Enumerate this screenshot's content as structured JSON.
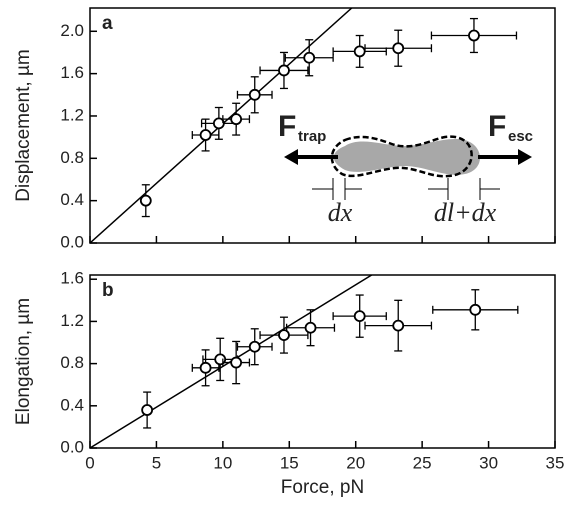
{
  "chart_data": [
    {
      "type": "scatter",
      "label": "a",
      "ylabel": "Displacement, µm",
      "xlim": [
        0,
        35
      ],
      "xticks": [
        0,
        5,
        10,
        15,
        20,
        25,
        30,
        35
      ],
      "ylim": [
        0,
        2.22
      ],
      "yticks": [
        {
          "value": 0,
          "label": "0.0"
        },
        {
          "value": 0.4,
          "label": "0.4"
        },
        {
          "value": 0.8,
          "label": "0.8"
        },
        {
          "value": 1.2,
          "label": "1.2"
        },
        {
          "value": 1.6,
          "label": "1.6"
        },
        {
          "value": 2.0,
          "label": "2.0"
        }
      ],
      "series": [
        {
          "type": "points",
          "color": "#000000",
          "x": [
            4.2,
            8.7,
            9.7,
            11,
            12.4,
            14.6,
            16.5,
            20.3,
            23.2,
            28.9
          ],
          "values": [
            0.4,
            1.02,
            1.13,
            1.17,
            1.4,
            1.63,
            1.75,
            1.81,
            1.84,
            1.96
          ],
          "xerr": [
            0,
            1.0,
            1.3,
            1.0,
            1.3,
            1.8,
            1.8,
            2.0,
            2.5,
            3.2
          ],
          "yerr": [
            0.15,
            0.15,
            0.15,
            0.15,
            0.17,
            0.17,
            0.17,
            0.15,
            0.17,
            0.16
          ]
        },
        {
          "type": "line",
          "color": "#000000",
          "x": [
            0,
            19.7
          ],
          "values": [
            0,
            2.22
          ]
        }
      ],
      "inset": {
        "left_force": "F",
        "left_sub": "trap",
        "right_force": "F",
        "right_sub": "esc",
        "left_gap": "dx",
        "right_gap": "dl+dx"
      }
    },
    {
      "type": "scatter",
      "label": "b",
      "ylabel": "Elongation, µm",
      "xlabel": "Force, pN",
      "xlim": [
        0,
        35
      ],
      "xticks": [
        0,
        5,
        10,
        15,
        20,
        25,
        30,
        35
      ],
      "ylim": [
        0,
        1.64
      ],
      "yticks": [
        {
          "value": 0,
          "label": "0.0"
        },
        {
          "value": 0.4,
          "label": "0.4"
        },
        {
          "value": 0.8,
          "label": "0.8"
        },
        {
          "value": 1.2,
          "label": "1.2"
        },
        {
          "value": 1.6,
          "label": "1.6"
        }
      ],
      "series": [
        {
          "type": "points",
          "color": "#000000",
          "x": [
            4.3,
            8.7,
            9.8,
            11,
            12.4,
            14.6,
            16.6,
            20.3,
            23.2,
            29
          ],
          "values": [
            0.36,
            0.76,
            0.84,
            0.81,
            0.96,
            1.07,
            1.14,
            1.25,
            1.16,
            1.31
          ],
          "xerr": [
            0,
            1.0,
            1.3,
            1.0,
            1.3,
            1.8,
            1.8,
            2.0,
            2.5,
            3.2
          ],
          "yerr": [
            0.17,
            0.17,
            0.2,
            0.2,
            0.17,
            0.17,
            0.17,
            0.2,
            0.24,
            0.19
          ]
        },
        {
          "type": "line",
          "color": "#000000",
          "x": [
            0,
            21.2
          ],
          "values": [
            0,
            1.64
          ]
        }
      ]
    }
  ]
}
